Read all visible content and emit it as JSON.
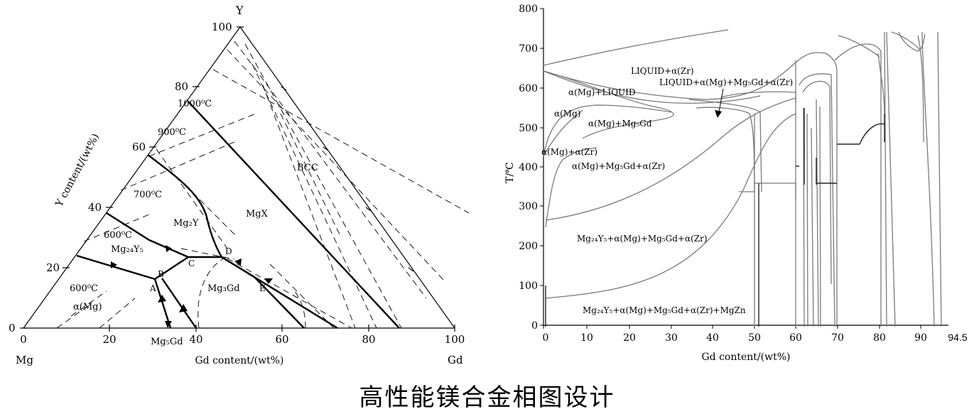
{
  "ternary": {
    "apex_top": "Y",
    "corner_left": "Mg",
    "corner_right": "Gd",
    "left_axis_label": "Y content/(wt%)",
    "bottom_axis_label": "Gd content/(wt%)",
    "left_ticks": [
      "0",
      "20",
      "40",
      "60",
      "80",
      "100"
    ],
    "bottom_ticks": [
      "0",
      "20",
      "40",
      "60",
      "80",
      "100"
    ],
    "isotherms": [
      "1000⁰C",
      "900⁰C",
      "700⁰C",
      "600⁰C",
      "600⁰C"
    ],
    "phases": {
      "bcc": "BCC",
      "mgx": "MgX",
      "mg2y": "Mg₂Y",
      "mg24y5": "Mg₂₄Y₅",
      "mg3gd": "Mg₃Gd",
      "alpha_mg": "α(Mg)",
      "mg5gd": "Mg₅Gd"
    },
    "points": [
      "A",
      "B",
      "C",
      "D",
      "E"
    ]
  },
  "binary": {
    "ylabel": "T/℃",
    "xlabel": "Gd content/(wt%)",
    "y_ticks": [
      "0",
      "100",
      "200",
      "300",
      "400",
      "500",
      "600",
      "700",
      "800"
    ],
    "x_ticks": [
      "0",
      "10",
      "20",
      "30",
      "40",
      "50",
      "60",
      "70",
      "80",
      "90",
      "94.5"
    ],
    "regions": {
      "liquid_zr": "LIQUID+α(Zr)",
      "liquid_mg_mg5gd_zr": "LIQUID+α(Mg)+Mg₅Gd+α(Zr)",
      "mg_liquid": "α(Mg)+LIQUID",
      "mg": "α(Mg)",
      "mg_mg5gd": "α(Mg)+Mg₅Gd",
      "mg_zr": "α(Mg)+α(Zr)",
      "mg_mg5gd_zr": "α(Mg)+Mg₅Gd+α(Zr)",
      "mg24y5_mg_mg5gd_zr": "Mg₂₄Y₅+α(Mg)+Mg₅Gd+α(Zr)",
      "mg24y5_mg_mg5gd_zr_mgzn": "Mg₂₄Y₅+α(Mg)+Mg₅Gd+α(Zr)+MgZn"
    }
  },
  "caption": "高性能镁合金相图设计"
}
